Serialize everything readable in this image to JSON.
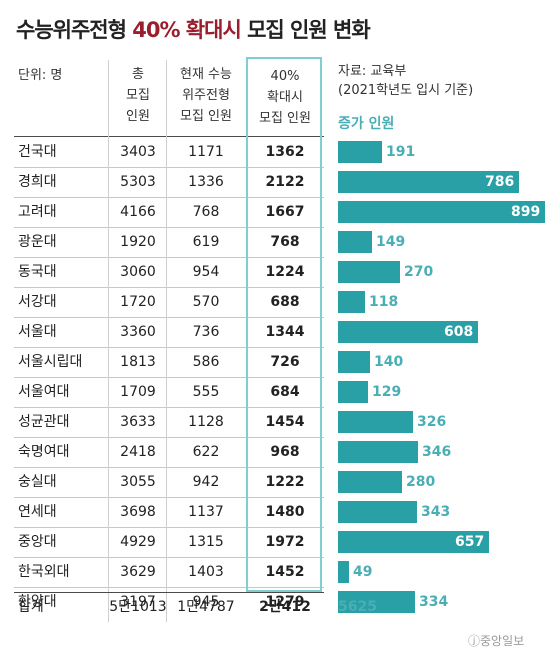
{
  "title": {
    "main": "수능위주전형 ",
    "highlight": "40% 확대시",
    "rest": " 모집 인원 변화"
  },
  "unit_label": "단위: 명",
  "source_lines": [
    "자료: 교육부",
    "(2021학년도 입시 기준)"
  ],
  "headers": {
    "total": [
      "총",
      "모집",
      "인원"
    ],
    "current": [
      "현재 수능",
      "위주전형",
      "모집 인원"
    ],
    "forty": [
      "40%",
      "확대시",
      "모집 인원"
    ],
    "increase": "증가 인원"
  },
  "colors": {
    "accent_title": "#9a1f2e",
    "bar": "#29a0a6",
    "highlight_border": "#7fcfd1",
    "increase_text": "#4aaeb5"
  },
  "chart_data": {
    "type": "table",
    "title": "수능위주전형 40% 확대시 모집 인원 변화",
    "unit": "명",
    "columns": [
      "총 모집 인원",
      "현재 수능 위주전형 모집 인원",
      "40% 확대시 모집 인원",
      "증가 인원"
    ],
    "rows": [
      {
        "name": "건국대",
        "total": "3403",
        "current": "1171",
        "forty": "1362",
        "increase": 191
      },
      {
        "name": "경희대",
        "total": "5303",
        "current": "1336",
        "forty": "2122",
        "increase": 786
      },
      {
        "name": "고려대",
        "total": "4166",
        "current": "768",
        "forty": "1667",
        "increase": 899
      },
      {
        "name": "광운대",
        "total": "1920",
        "current": "619",
        "forty": "768",
        "increase": 149
      },
      {
        "name": "동국대",
        "total": "3060",
        "current": "954",
        "forty": "1224",
        "increase": 270
      },
      {
        "name": "서강대",
        "total": "1720",
        "current": "570",
        "forty": "688",
        "increase": 118
      },
      {
        "name": "서울대",
        "total": "3360",
        "current": "736",
        "forty": "1344",
        "increase": 608
      },
      {
        "name": "서울시립대",
        "total": "1813",
        "current": "586",
        "forty": "726",
        "increase": 140
      },
      {
        "name": "서울여대",
        "total": "1709",
        "current": "555",
        "forty": "684",
        "increase": 129
      },
      {
        "name": "성균관대",
        "total": "3633",
        "current": "1128",
        "forty": "1454",
        "increase": 326
      },
      {
        "name": "숙명여대",
        "total": "2418",
        "current": "622",
        "forty": "968",
        "increase": 346
      },
      {
        "name": "숭실대",
        "total": "3055",
        "current": "942",
        "forty": "1222",
        "increase": 280
      },
      {
        "name": "연세대",
        "total": "3698",
        "current": "1137",
        "forty": "1480",
        "increase": 343
      },
      {
        "name": "중앙대",
        "total": "4929",
        "current": "1315",
        "forty": "1972",
        "increase": 657
      },
      {
        "name": "한국외대",
        "total": "3629",
        "current": "1403",
        "forty": "1452",
        "increase": 49
      },
      {
        "name": "한양대",
        "total": "3197",
        "current": "945",
        "forty": "1279",
        "increase": 334
      }
    ],
    "total_row": {
      "name": "합계",
      "total": "5만1013",
      "current": "1만4787",
      "forty": "2만412",
      "increase": "5625"
    },
    "increase_max": 899
  },
  "logo_text": "ⓙ중앙일보"
}
